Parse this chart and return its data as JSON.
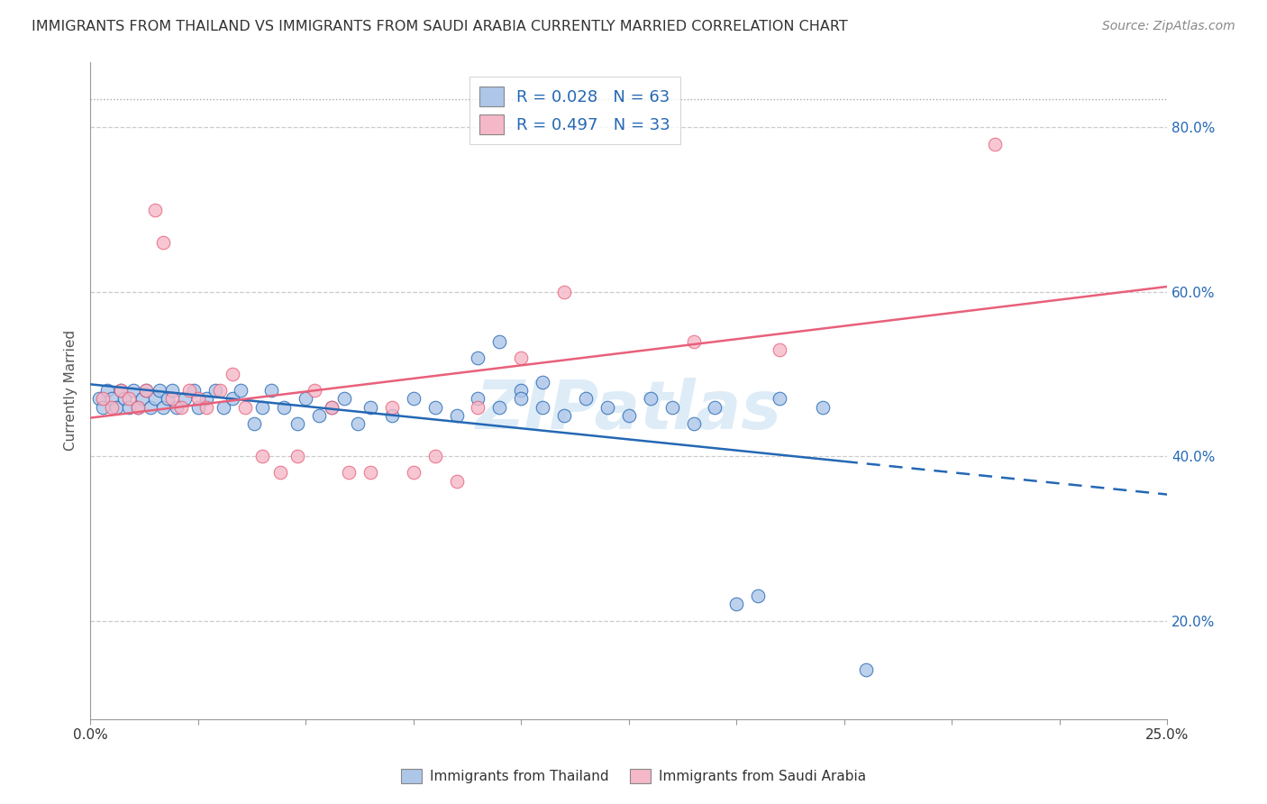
{
  "title": "IMMIGRANTS FROM THAILAND VS IMMIGRANTS FROM SAUDI ARABIA CURRENTLY MARRIED CORRELATION CHART",
  "source": "Source: ZipAtlas.com",
  "ylabel": "Currently Married",
  "legend_label1": "Immigrants from Thailand",
  "legend_label2": "Immigrants from Saudi Arabia",
  "R1": 0.028,
  "N1": 63,
  "R2": 0.497,
  "N2": 33,
  "color1": "#aec6e8",
  "color2": "#f5b8c8",
  "line_color1": "#2468b4",
  "line_color2": "#e8607a",
  "xlim": [
    0.0,
    0.25
  ],
  "ylim": [
    0.08,
    0.88
  ],
  "yticks": [
    0.2,
    0.4,
    0.6,
    0.8
  ],
  "ytick_labels": [
    "20.0%",
    "40.0%",
    "60.0%",
    "80.0%"
  ],
  "watermark": "ZIPatlas",
  "blue_line_solid_end": 0.175,
  "thailand_x": [
    0.002,
    0.003,
    0.004,
    0.005,
    0.006,
    0.007,
    0.008,
    0.009,
    0.01,
    0.011,
    0.012,
    0.013,
    0.014,
    0.015,
    0.016,
    0.017,
    0.018,
    0.019,
    0.02,
    0.022,
    0.024,
    0.025,
    0.027,
    0.029,
    0.031,
    0.033,
    0.035,
    0.038,
    0.04,
    0.042,
    0.045,
    0.048,
    0.05,
    0.053,
    0.056,
    0.059,
    0.062,
    0.065,
    0.07,
    0.075,
    0.08,
    0.085,
    0.09,
    0.095,
    0.1,
    0.105,
    0.11,
    0.115,
    0.12,
    0.125,
    0.13,
    0.135,
    0.14,
    0.145,
    0.15,
    0.155,
    0.16,
    0.17,
    0.18,
    0.09,
    0.095,
    0.1,
    0.105
  ],
  "thailand_y": [
    0.47,
    0.46,
    0.48,
    0.47,
    0.46,
    0.48,
    0.47,
    0.46,
    0.48,
    0.46,
    0.47,
    0.48,
    0.46,
    0.47,
    0.48,
    0.46,
    0.47,
    0.48,
    0.46,
    0.47,
    0.48,
    0.46,
    0.47,
    0.48,
    0.46,
    0.47,
    0.48,
    0.44,
    0.46,
    0.48,
    0.46,
    0.44,
    0.47,
    0.45,
    0.46,
    0.47,
    0.44,
    0.46,
    0.45,
    0.47,
    0.46,
    0.45,
    0.47,
    0.46,
    0.48,
    0.46,
    0.45,
    0.47,
    0.46,
    0.45,
    0.47,
    0.46,
    0.44,
    0.46,
    0.22,
    0.23,
    0.47,
    0.46,
    0.14,
    0.52,
    0.54,
    0.47,
    0.49
  ],
  "saudi_x": [
    0.003,
    0.005,
    0.007,
    0.009,
    0.011,
    0.013,
    0.015,
    0.017,
    0.019,
    0.021,
    0.023,
    0.025,
    0.027,
    0.03,
    0.033,
    0.036,
    0.04,
    0.044,
    0.048,
    0.052,
    0.056,
    0.06,
    0.065,
    0.07,
    0.075,
    0.08,
    0.085,
    0.09,
    0.1,
    0.11,
    0.14,
    0.16,
    0.21
  ],
  "saudi_y": [
    0.47,
    0.46,
    0.48,
    0.47,
    0.46,
    0.48,
    0.7,
    0.66,
    0.47,
    0.46,
    0.48,
    0.47,
    0.46,
    0.48,
    0.5,
    0.46,
    0.4,
    0.38,
    0.4,
    0.48,
    0.46,
    0.38,
    0.38,
    0.46,
    0.38,
    0.4,
    0.37,
    0.46,
    0.52,
    0.6,
    0.54,
    0.53,
    0.78
  ]
}
